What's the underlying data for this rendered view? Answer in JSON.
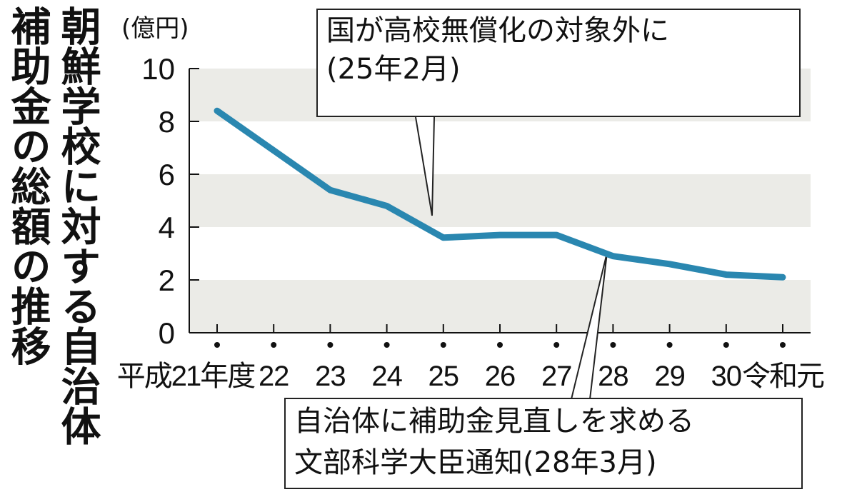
{
  "title": {
    "line1": "朝鮮学校に対する自治体",
    "line2": "補助金の総額の推移"
  },
  "unit_label": "(億円)",
  "annotations": [
    {
      "line1": "国が高校無償化の対象外に",
      "line2": "(25年2月)"
    },
    {
      "line1": "自治体に補助金見直しを求める",
      "line2": "文部科学大臣通知(28年3月)"
    }
  ],
  "chart_data": {
    "type": "line",
    "categories": [
      "平成21年度",
      "22",
      "23",
      "24",
      "25",
      "26",
      "27",
      "28",
      "29",
      "30",
      "令和元"
    ],
    "series": [
      {
        "values": [
          8.4,
          6.9,
          5.4,
          4.8,
          3.6,
          3.7,
          3.7,
          2.9,
          2.6,
          2.2,
          2.1
        ]
      }
    ],
    "ylim": [
      0,
      10
    ],
    "yticks": [
      "0",
      "2",
      "4",
      "6",
      "8",
      "10"
    ],
    "grid": "alternating horizontal bands",
    "colors": {
      "line": "#2a87b0",
      "band": "#ebebe7",
      "axis": "#111111"
    }
  }
}
